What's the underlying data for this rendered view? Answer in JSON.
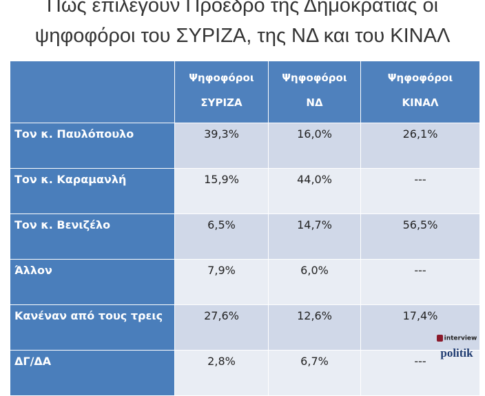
{
  "title": [
    "Πως επιλέγουν Πρόεδρο της Δημοκρατίας οι",
    "ψηφοφόροι του ΣΥΡΙΖΑ, της ΝΔ και του ΚΙΝΑΛ"
  ],
  "table": {
    "header": [
      [
        "Ψηφοφόροι",
        "ΣΥΡΙΖΑ"
      ],
      [
        "Ψηφοφόροι",
        "ΝΔ"
      ],
      [
        "Ψηφοφόροι",
        "ΚΙΝΑΛ"
      ]
    ],
    "rows": [
      [
        "Τον κ. Παυλόπουλο",
        "39,3%",
        "16,0%",
        "26,1%"
      ],
      [
        "Τον κ. Καραμανλή",
        "15,9%",
        "44,0%",
        "---"
      ],
      [
        "Τον κ. Βενιζέλο",
        "6,5%",
        "14,7%",
        "56,5%"
      ],
      [
        "Άλλον",
        "7,9%",
        "6,0%",
        "---"
      ],
      [
        "Κανέναν από τους τρεις",
        "27,6%",
        "12,6%",
        "17,4%"
      ],
      [
        "ΔΓ/ΔΑ",
        "2,8%",
        "6,7%",
        "---"
      ]
    ]
  },
  "logo": {
    "top": "interview",
    "bottom": "politik"
  }
}
